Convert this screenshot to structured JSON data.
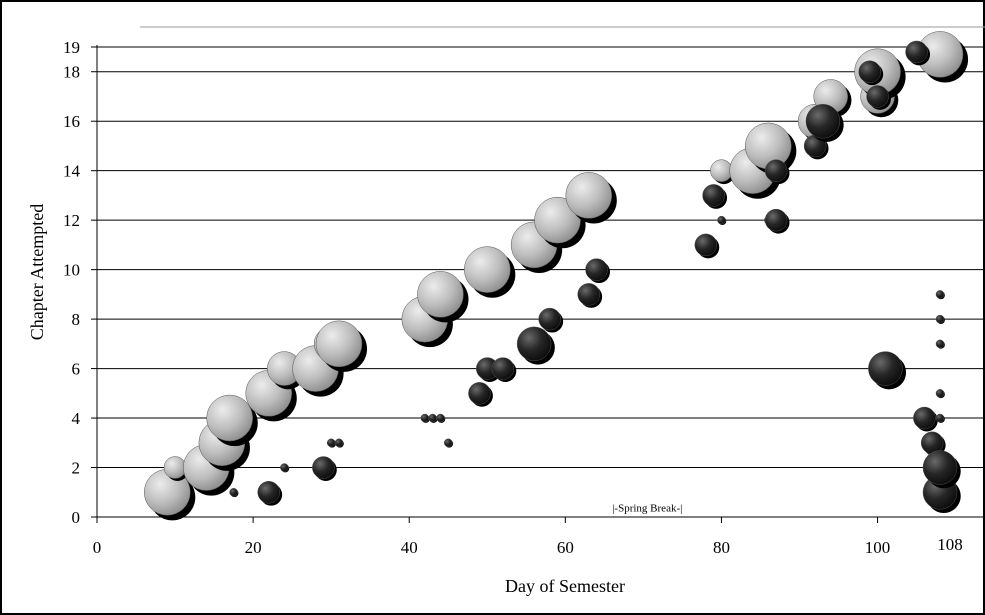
{
  "chart_data": {
    "type": "scatter",
    "title": "",
    "xlabel": "Day of Semester",
    "ylabel": "Chapter Attempted",
    "xlim": [
      0,
      108
    ],
    "ylim": [
      0,
      19
    ],
    "x_ticks": [
      0,
      20,
      40,
      60,
      80,
      100
    ],
    "x_tick_labels": [
      "0",
      "20",
      "40",
      "60",
      "80",
      "100"
    ],
    "x_end_label": "108",
    "y_ticks": [
      0,
      2,
      4,
      6,
      8,
      10,
      12,
      14,
      16,
      18,
      19
    ],
    "y_tick_labels": [
      "0",
      "2",
      "4",
      "6",
      "8",
      "10",
      "12",
      "14",
      "16",
      "18",
      "19"
    ],
    "grid": "horizontal",
    "legend": "none",
    "annotations": [
      {
        "text": "|-Spring Break-|",
        "x": 70.5,
        "y": 0.5
      }
    ],
    "series": [
      {
        "color": "#bdbdbd",
        "points": [
          {
            "x": 8.5,
            "y": 1,
            "s": 2
          },
          {
            "x": 9,
            "y": 1,
            "s": 3
          },
          {
            "x": 10,
            "y": 2,
            "s": 1
          },
          {
            "x": 14,
            "y": 2,
            "s": 3
          },
          {
            "x": 16,
            "y": 3,
            "s": 3
          },
          {
            "x": 17,
            "y": 4,
            "s": 3
          },
          {
            "x": 22,
            "y": 5,
            "s": 3
          },
          {
            "x": 24,
            "y": 6,
            "s": 2
          },
          {
            "x": 28,
            "y": 6,
            "s": 3
          },
          {
            "x": 30,
            "y": 7,
            "s": 2
          },
          {
            "x": 31,
            "y": 7,
            "s": 3
          },
          {
            "x": 42,
            "y": 8,
            "s": 3
          },
          {
            "x": 44,
            "y": 9,
            "s": 3
          },
          {
            "x": 50,
            "y": 10,
            "s": 3
          },
          {
            "x": 56,
            "y": 11,
            "s": 3
          },
          {
            "x": 59,
            "y": 12,
            "s": 3
          },
          {
            "x": 63,
            "y": 13,
            "s": 3
          },
          {
            "x": 80,
            "y": 14,
            "s": 1
          },
          {
            "x": 84,
            "y": 14,
            "s": 3
          },
          {
            "x": 86,
            "y": 15,
            "s": 3
          },
          {
            "x": 92,
            "y": 16,
            "s": 2
          },
          {
            "x": 94,
            "y": 17,
            "s": 2
          },
          {
            "x": 100,
            "y": 17,
            "s": 2
          },
          {
            "x": 100,
            "y": 18,
            "s": 3
          },
          {
            "x": 108,
            "y": 18.7,
            "s": 3
          }
        ]
      },
      {
        "color": "#262626",
        "points": [
          {
            "x": 17.5,
            "y": 1,
            "s": 0
          },
          {
            "x": 22,
            "y": 1,
            "s": 1
          },
          {
            "x": 24,
            "y": 2,
            "s": 0
          },
          {
            "x": 29,
            "y": 2,
            "s": 1
          },
          {
            "x": 30,
            "y": 3,
            "s": 0
          },
          {
            "x": 31,
            "y": 3,
            "s": 0
          },
          {
            "x": 42,
            "y": 4,
            "s": 0
          },
          {
            "x": 43,
            "y": 4,
            "s": 0
          },
          {
            "x": 44,
            "y": 4,
            "s": 0
          },
          {
            "x": 45,
            "y": 3,
            "s": 0
          },
          {
            "x": 49,
            "y": 5,
            "s": 1
          },
          {
            "x": 50,
            "y": 6,
            "s": 1
          },
          {
            "x": 52,
            "y": 6,
            "s": 1
          },
          {
            "x": 56,
            "y": 7,
            "s": 2
          },
          {
            "x": 58,
            "y": 8,
            "s": 1
          },
          {
            "x": 63,
            "y": 9,
            "s": 1
          },
          {
            "x": 64,
            "y": 10,
            "s": 1
          },
          {
            "x": 78,
            "y": 11,
            "s": 1
          },
          {
            "x": 79,
            "y": 13,
            "s": 1
          },
          {
            "x": 80,
            "y": 12,
            "s": 0
          },
          {
            "x": 86,
            "y": 12,
            "s": 0
          },
          {
            "x": 87,
            "y": 12,
            "s": 1
          },
          {
            "x": 87,
            "y": 14,
            "s": 1
          },
          {
            "x": 92,
            "y": 15,
            "s": 1
          },
          {
            "x": 93,
            "y": 16,
            "s": 2
          },
          {
            "x": 99,
            "y": 18,
            "s": 1
          },
          {
            "x": 100,
            "y": 17,
            "s": 1
          },
          {
            "x": 105,
            "y": 18.8,
            "s": 1
          },
          {
            "x": 101,
            "y": 6,
            "s": 2
          },
          {
            "x": 106,
            "y": 4,
            "s": 1
          },
          {
            "x": 107,
            "y": 3,
            "s": 1
          },
          {
            "x": 108,
            "y": 1,
            "s": 2
          },
          {
            "x": 108,
            "y": 2,
            "s": 2
          },
          {
            "x": 108,
            "y": 4,
            "s": 0
          },
          {
            "x": 108,
            "y": 5,
            "s": 0
          },
          {
            "x": 108,
            "y": 7,
            "s": 0
          },
          {
            "x": 108,
            "y": 8,
            "s": 0
          },
          {
            "x": 108,
            "y": 9,
            "s": 0
          }
        ]
      }
    ]
  }
}
